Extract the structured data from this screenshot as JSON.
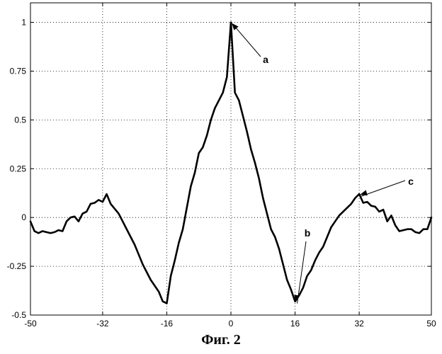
{
  "caption": "Фиг. 2",
  "chart_data": {
    "type": "line",
    "title": "",
    "xlabel": "",
    "ylabel": "",
    "xlim": [
      -50,
      50
    ],
    "ylim": [
      -0.5,
      1.1
    ],
    "grid": true,
    "x_ticks": [
      -50,
      -32,
      -16,
      0,
      16,
      32,
      50
    ],
    "x_tick_labels": [
      "-50",
      "-32",
      "-16",
      "0",
      "16",
      "32",
      "50"
    ],
    "y_ticks": [
      -0.5,
      -0.25,
      0,
      0.25,
      0.5,
      0.75,
      1
    ],
    "y_tick_labels": [
      "-0.5",
      "-0.25",
      "0",
      "0.25",
      "0.5",
      "0.75",
      "1"
    ],
    "series": [
      {
        "color": "#000000",
        "x": [
          -50,
          -49,
          -48,
          -47,
          -46,
          -45,
          -44,
          -43,
          -42,
          -41,
          -40,
          -39,
          -38,
          -37,
          -36,
          -35,
          -34,
          -33,
          -32,
          -31,
          -30,
          -29,
          -28,
          -27,
          -26,
          -25,
          -24,
          -23,
          -22,
          -21,
          -20,
          -19,
          -18,
          -17,
          -16,
          -15,
          -14,
          -13,
          -12,
          -11,
          -10,
          -9,
          -8,
          -7,
          -6,
          -5,
          -4,
          -3,
          -2,
          -1,
          0,
          1,
          2,
          3,
          4,
          5,
          6,
          7,
          8,
          9,
          10,
          11,
          12,
          13,
          14,
          15,
          16,
          17,
          18,
          19,
          20,
          21,
          22,
          23,
          24,
          25,
          26,
          27,
          28,
          29,
          30,
          31,
          32,
          33,
          34,
          35,
          36,
          37,
          38,
          39,
          40,
          41,
          42,
          43,
          44,
          45,
          46,
          47,
          48,
          49,
          50
        ],
        "y": [
          -0.02,
          -0.07,
          -0.08,
          -0.07,
          -0.075,
          -0.08,
          -0.075,
          -0.065,
          -0.07,
          -0.02,
          0,
          0.005,
          -0.02,
          0.02,
          0.03,
          0.07,
          0.075,
          0.09,
          0.08,
          0.12,
          0.07,
          0.045,
          0.02,
          -0.02,
          -0.06,
          -0.1,
          -0.14,
          -0.19,
          -0.24,
          -0.28,
          -0.32,
          -0.35,
          -0.38,
          -0.43,
          -0.44,
          -0.3,
          -0.22,
          -0.13,
          -0.06,
          0.05,
          0.16,
          0.23,
          0.33,
          0.36,
          0.42,
          0.5,
          0.56,
          0.6,
          0.64,
          0.72,
          1.0,
          0.64,
          0.6,
          0.52,
          0.44,
          0.35,
          0.28,
          0.2,
          0.1,
          0.02,
          -0.06,
          -0.1,
          -0.16,
          -0.24,
          -0.32,
          -0.37,
          -0.43,
          -0.4,
          -0.36,
          -0.3,
          -0.27,
          -0.22,
          -0.18,
          -0.15,
          -0.1,
          -0.05,
          -0.02,
          0.01,
          0.03,
          0.05,
          0.07,
          0.1,
          0.12,
          0.075,
          0.08,
          0.06,
          0.055,
          0.03,
          0.04,
          -0.02,
          0.01,
          -0.04,
          -0.07,
          -0.065,
          -0.06,
          -0.06,
          -0.075,
          -0.08,
          -0.06,
          -0.06,
          0
        ]
      }
    ],
    "annotations": [
      {
        "text": "a",
        "x": 0,
        "y": 1.0
      },
      {
        "text": "b",
        "x": 16,
        "y": -0.43
      },
      {
        "text": "c",
        "x": 32,
        "y": 0.12
      }
    ]
  }
}
